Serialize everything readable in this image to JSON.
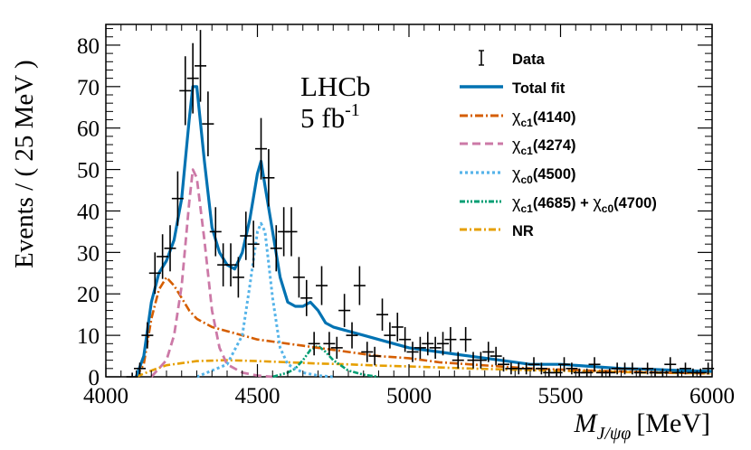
{
  "chart_data": {
    "type": "line",
    "experiment_label": "LHCb",
    "luminosity_label": "5 fb",
    "luminosity_exponent": "-1",
    "xlabel": "M",
    "xlabel_subscript": "J/ψφ",
    "xlabel_unit": "[MeV]",
    "ylabel": "Events / ( 25 MeV )",
    "xlim": [
      4000,
      6000
    ],
    "ylim": [
      0,
      85
    ],
    "xticks": [
      4000,
      4500,
      5000,
      5500,
      6000
    ],
    "yticks": [
      0,
      10,
      20,
      30,
      40,
      50,
      60,
      70,
      80
    ],
    "legend_position": "top-right",
    "legend": [
      {
        "key": "data",
        "label": "Data"
      },
      {
        "key": "total",
        "label": "Total fit"
      },
      {
        "key": "x4140",
        "label": "χc1(4140)",
        "sym": "χ",
        "sub": "c1",
        "rest": "(4140)"
      },
      {
        "key": "x4274",
        "label": "χc1(4274)",
        "sym": "χ",
        "sub": "c1",
        "rest": "(4274)"
      },
      {
        "key": "x4500",
        "label": "χc0(4500)",
        "sym": "χ",
        "sub": "c0",
        "rest": "(4500)"
      },
      {
        "key": "x4685",
        "label": "χc1(4685) + χc0(4700)",
        "sym": "χ",
        "sub": "c1",
        "rest": "(4685) + ",
        "sym2": "χ",
        "sub2": "c0",
        "rest2": "(4700)"
      },
      {
        "key": "nr",
        "label": "NR"
      }
    ],
    "data_points": {
      "x": [
        4087,
        4112,
        4137,
        4162,
        4187,
        4212,
        4237,
        4262,
        4287,
        4312,
        4337,
        4362,
        4387,
        4412,
        4437,
        4462,
        4487,
        4512,
        4537,
        4562,
        4587,
        4612,
        4637,
        4662,
        4687,
        4712,
        4737,
        4762,
        4787,
        4812,
        4837,
        4862,
        4887,
        4912,
        4937,
        4962,
        4987,
        5012,
        5037,
        5062,
        5087,
        5112,
        5137,
        5162,
        5187,
        5212,
        5237,
        5262,
        5287,
        5312,
        5337,
        5362,
        5387,
        5412,
        5437,
        5462,
        5487,
        5512,
        5537,
        5562,
        5587,
        5612,
        5637,
        5662,
        5687,
        5712,
        5737,
        5762,
        5787,
        5812,
        5837,
        5862,
        5887,
        5912,
        5937,
        5962,
        5987
      ],
      "y": [
        0,
        2,
        10,
        25,
        29,
        31,
        43,
        69,
        72,
        75,
        61,
        35,
        27,
        27,
        24,
        34,
        32,
        55,
        48,
        31,
        35,
        35,
        24,
        19,
        8,
        22,
        8,
        7,
        16,
        10,
        22,
        6,
        5,
        15,
        10,
        12,
        9,
        6,
        7,
        8,
        7,
        8,
        9,
        4,
        9,
        4,
        4,
        6,
        5,
        3,
        2,
        2,
        2,
        3,
        2,
        1,
        1,
        3,
        2,
        1,
        1,
        3,
        1,
        1,
        2,
        2,
        2,
        1,
        2,
        1,
        1,
        3,
        1,
        2,
        1,
        1,
        2
      ]
    },
    "series": [
      {
        "key": "total",
        "name": "Total fit",
        "color": "#0072b2",
        "x": [
          4100,
          4125,
          4150,
          4175,
          4200,
          4225,
          4250,
          4275,
          4287,
          4300,
          4325,
          4350,
          4375,
          4400,
          4425,
          4450,
          4475,
          4500,
          4512,
          4525,
          4550,
          4575,
          4600,
          4625,
          4650,
          4675,
          4700,
          4725,
          4750,
          4800,
          4850,
          4900,
          4950,
          5000,
          5100,
          5200,
          5300,
          5400,
          5500,
          5600,
          5700,
          5800,
          5900,
          6000
        ],
        "y": [
          0,
          5,
          18,
          25,
          28,
          33,
          43,
          62,
          70,
          70,
          52,
          36,
          30,
          27,
          26,
          30,
          38,
          49,
          52,
          46,
          35,
          24,
          18,
          17,
          17,
          18,
          16,
          13,
          12,
          11,
          10,
          9,
          8,
          7,
          6,
          5,
          4,
          3,
          3,
          2.5,
          2,
          1.8,
          1.5,
          1.3
        ]
      },
      {
        "key": "x4140",
        "name": "χc1(4140)",
        "color": "#d55e00",
        "x": [
          4100,
          4125,
          4150,
          4175,
          4200,
          4225,
          4250,
          4275,
          4300,
          4350,
          4400,
          4450,
          4500,
          4550,
          4600,
          4650,
          4700,
          4750,
          4800,
          4900,
          5000,
          5100,
          5200,
          5400,
          5600,
          5800,
          6000
        ],
        "y": [
          0,
          3,
          14,
          21,
          24,
          22,
          19,
          16,
          14,
          12,
          11,
          10,
          9,
          8.5,
          8,
          7.5,
          7,
          6.5,
          6,
          5,
          4.5,
          3.5,
          3,
          2,
          1.5,
          1.1,
          0.8
        ]
      },
      {
        "key": "x4274",
        "name": "χc1(4274)",
        "color": "#cc79a7",
        "x": [
          4150,
          4200,
          4225,
          4250,
          4275,
          4287,
          4300,
          4325,
          4350,
          4375,
          4400,
          4450,
          4500,
          4550
        ],
        "y": [
          0,
          4,
          10,
          22,
          42,
          50,
          48,
          33,
          16,
          7,
          3,
          1,
          0.3,
          0
        ]
      },
      {
        "key": "x4500",
        "name": "χc0(4500)",
        "color": "#56b4e9",
        "x": [
          4300,
          4400,
          4450,
          4475,
          4500,
          4512,
          4525,
          4550,
          4575,
          4600,
          4650,
          4700,
          4750
        ],
        "y": [
          0,
          3,
          10,
          22,
          35,
          37,
          35,
          19,
          7,
          3,
          1,
          0.3,
          0
        ]
      },
      {
        "key": "x4685",
        "name": "χc1(4685) + χc0(4700)",
        "color": "#009e73",
        "x": [
          4550,
          4600,
          4625,
          4650,
          4675,
          4700,
          4725,
          4750,
          4800,
          4850,
          4900
        ],
        "y": [
          0,
          1,
          2,
          4,
          6.5,
          7.5,
          6,
          4,
          1.5,
          0.5,
          0
        ]
      },
      {
        "key": "nr",
        "name": "NR",
        "color": "#e69f00",
        "x": [
          4100,
          4150,
          4200,
          4300,
          4400,
          4500,
          4600,
          4700,
          4800,
          4900,
          5000,
          5200,
          5400,
          5600,
          5800,
          6000
        ],
        "y": [
          0,
          1.5,
          2.8,
          3.8,
          4,
          3.8,
          3.5,
          3.2,
          3,
          2.7,
          2.5,
          2,
          1.6,
          1.3,
          1,
          0.8
        ]
      }
    ]
  }
}
